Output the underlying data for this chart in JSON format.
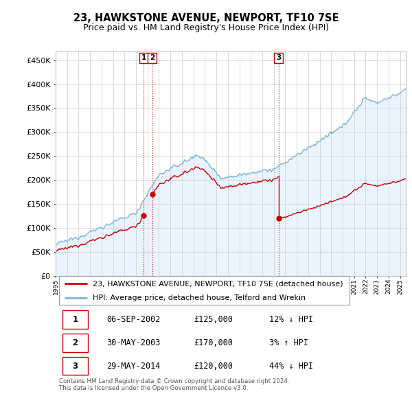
{
  "title": "23, HAWKSTONE AVENUE, NEWPORT, TF10 7SE",
  "subtitle": "Price paid vs. HM Land Registry's House Price Index (HPI)",
  "yticks": [
    0,
    50000,
    100000,
    150000,
    200000,
    250000,
    300000,
    350000,
    400000,
    450000
  ],
  "ytick_labels": [
    "£0",
    "£50K",
    "£100K",
    "£150K",
    "£200K",
    "£250K",
    "£300K",
    "£350K",
    "£400K",
    "£450K"
  ],
  "xlim_start": 1995.0,
  "xlim_end": 2025.5,
  "ylim": [
    0,
    470000
  ],
  "hpi_color": "#7eb3d8",
  "hpi_fill_color": "#ddeeff",
  "price_color": "#cc0000",
  "vline_color": "#cc0000",
  "transactions": [
    {
      "label": "1",
      "year": 2002.68,
      "price": 125000
    },
    {
      "label": "2",
      "year": 2003.41,
      "price": 170000
    },
    {
      "label": "3",
      "year": 2014.41,
      "price": 120000
    }
  ],
  "legend_price_label": "23, HAWKSTONE AVENUE, NEWPORT, TF10 7SE (detached house)",
  "legend_hpi_label": "HPI: Average price, detached house, Telford and Wrekin",
  "footnote": "Contains HM Land Registry data © Crown copyright and database right 2024.\nThis data is licensed under the Open Government Licence v3.0.",
  "table_rows": [
    [
      "1",
      "06-SEP-2002",
      "£125,000",
      "12% ↓ HPI"
    ],
    [
      "2",
      "30-MAY-2003",
      "£170,000",
      "3% ↑ HPI"
    ],
    [
      "3",
      "29-MAY-2014",
      "£120,000",
      "44% ↓ HPI"
    ]
  ],
  "bg_color": "#ffffff",
  "grid_color": "#cccccc",
  "title_fontsize": 10.5,
  "subtitle_fontsize": 9,
  "axis_fontsize": 8,
  "legend_fontsize": 8,
  "table_fontsize": 8.5
}
